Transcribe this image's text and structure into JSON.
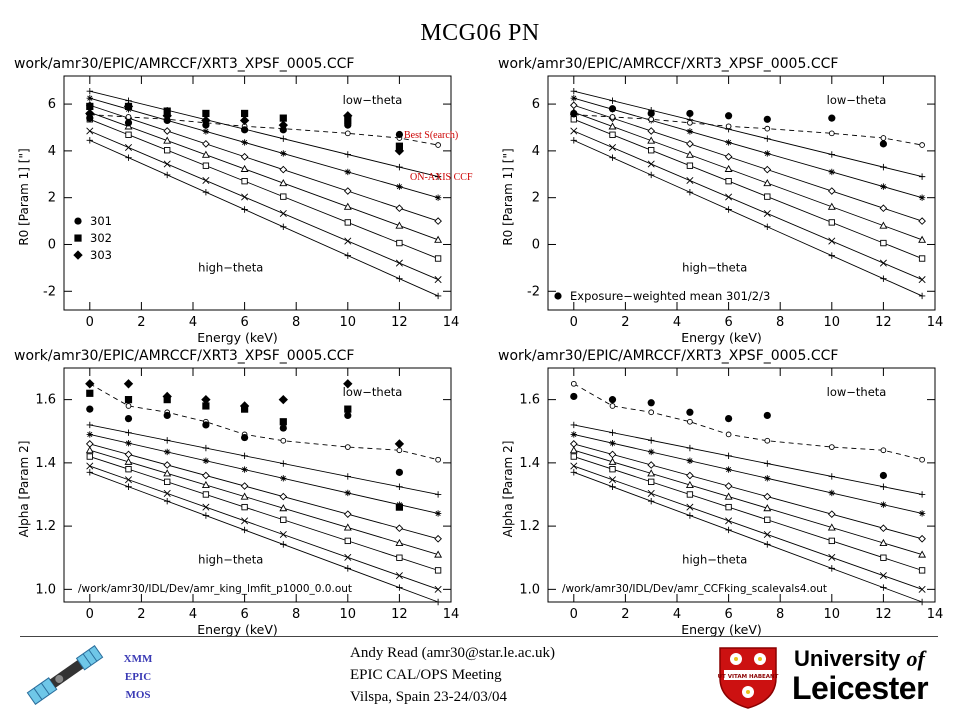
{
  "slide": {
    "title": "MCG06     PN"
  },
  "annotations": {
    "best_search": "Best S(earch)",
    "on_axis_ccf": "ON-AXIS CCF"
  },
  "footer": {
    "left_labels": [
      "XMM",
      "EPIC",
      "MOS"
    ],
    "center_lines": [
      "Andy Read (amr30@star.le.ac.uk)",
      "EPIC CAL/OPS Meeting",
      "Vilspa, Spain 23-24/03/04"
    ],
    "logo_line1_a": "University ",
    "logo_line1_b": "of",
    "logo_line2": "Leicester",
    "crest_motto": "UT VITAM HABEANT",
    "colors": {
      "footer_text": "#3a3ab5",
      "crest_red": "#cc1111",
      "annotation": "#cc0000"
    }
  },
  "chart_data": [
    {
      "type": "scatter",
      "title": "work/amr30/EPIC/AMRCCF/XRT3_XPSF_0005.CCF",
      "xlabel": "Energy (keV)",
      "ylabel": "R0 [Param 1] [\"]",
      "xlim": [
        -1,
        14
      ],
      "ylim": [
        -2.8,
        7.2
      ],
      "xticks": [
        "0",
        "2",
        "4",
        "6",
        "8",
        "10",
        "12",
        "14"
      ],
      "yticks": [
        "-2",
        "0",
        "2",
        "4",
        "6"
      ],
      "labels": [
        "low−theta",
        "high−theta"
      ],
      "footnote": "",
      "legend": [
        {
          "name": "301",
          "marker": "circle"
        },
        {
          "name": "302",
          "marker": "square"
        },
        {
          "name": "303",
          "marker": "diamond"
        }
      ],
      "observed": [
        {
          "name": "301",
          "x": [
            0,
            1.5,
            3,
            4.5,
            6,
            7.5,
            10,
            12
          ],
          "y": [
            5.4,
            5.2,
            5.3,
            5.1,
            4.9,
            4.9,
            5.1,
            4.7
          ]
        },
        {
          "name": "302",
          "x": [
            0,
            1.5,
            3,
            4.5,
            6,
            7.5,
            10,
            12
          ],
          "y": [
            5.9,
            5.9,
            5.7,
            5.6,
            5.6,
            5.4,
            5.3,
            4.2
          ]
        },
        {
          "name": "303",
          "x": [
            0,
            1.5,
            3,
            4.5,
            6,
            7.5,
            10,
            12
          ],
          "y": [
            5.6,
            5.9,
            5.5,
            5.3,
            5.3,
            5.1,
            5.5,
            4.0
          ]
        }
      ],
      "ccf_x": [
        0,
        1.5,
        3,
        4.5,
        6,
        7.5,
        10,
        12,
        13.5
      ],
      "ccf_curve": [
        5.55,
        5.45,
        5.35,
        5.2,
        5.05,
        4.95,
        4.75,
        4.55,
        4.25
      ],
      "ccf_lines": [
        {
          "start": 6.55,
          "end": 2.9,
          "marker": "plus"
        },
        {
          "start": 6.25,
          "end": 2.0,
          "marker": "asterisk"
        },
        {
          "start": 5.95,
          "end": 1.0,
          "marker": "diamond-open"
        },
        {
          "start": 5.65,
          "end": 0.2,
          "marker": "triangle-open"
        },
        {
          "start": 5.35,
          "end": -0.6,
          "marker": "square-open"
        },
        {
          "start": 4.85,
          "end": -1.5,
          "marker": "cross"
        },
        {
          "start": 4.45,
          "end": -2.2,
          "marker": "plus"
        }
      ]
    },
    {
      "type": "scatter",
      "title": "work/amr30/EPIC/AMRCCF/XRT3_XPSF_0005.CCF",
      "xlabel": "Energy (keV)",
      "ylabel": "R0 [Param 1] [\"]",
      "xlim": [
        -1,
        14
      ],
      "ylim": [
        -2.8,
        7.2
      ],
      "xticks": [
        "0",
        "2",
        "4",
        "6",
        "8",
        "10",
        "12",
        "14"
      ],
      "yticks": [
        "-2",
        "0",
        "2",
        "4",
        "6"
      ],
      "labels": [
        "low−theta",
        "high−theta"
      ],
      "footnote": "",
      "legend": [
        {
          "name": "Exposure−weighted mean 301/2/3",
          "marker": "circle"
        }
      ],
      "observed": [
        {
          "name": "Exposure−weighted mean 301/2/3",
          "x": [
            0,
            1.5,
            3,
            4.5,
            6,
            7.5,
            10,
            12
          ],
          "y": [
            5.6,
            5.8,
            5.6,
            5.6,
            5.5,
            5.35,
            5.4,
            4.3
          ]
        }
      ],
      "ccf_x": [
        0,
        1.5,
        3,
        4.5,
        6,
        7.5,
        10,
        12,
        13.5
      ],
      "ccf_curve": [
        5.55,
        5.45,
        5.35,
        5.2,
        5.05,
        4.95,
        4.75,
        4.55,
        4.25
      ],
      "ccf_lines": [
        {
          "start": 6.55,
          "end": 2.9,
          "marker": "plus"
        },
        {
          "start": 6.25,
          "end": 2.0,
          "marker": "asterisk"
        },
        {
          "start": 5.95,
          "end": 1.0,
          "marker": "diamond-open"
        },
        {
          "start": 5.65,
          "end": 0.2,
          "marker": "triangle-open"
        },
        {
          "start": 5.35,
          "end": -0.6,
          "marker": "square-open"
        },
        {
          "start": 4.85,
          "end": -1.5,
          "marker": "cross"
        },
        {
          "start": 4.45,
          "end": -2.2,
          "marker": "plus"
        }
      ]
    },
    {
      "type": "scatter",
      "title": "work/amr30/EPIC/AMRCCF/XRT3_XPSF_0005.CCF",
      "xlabel": "Energy (keV)",
      "ylabel": "Alpha [Param 2]",
      "xlim": [
        -1,
        14
      ],
      "ylim": [
        0.96,
        1.7
      ],
      "xticks": [
        "0",
        "2",
        "4",
        "6",
        "8",
        "10",
        "12",
        "14"
      ],
      "yticks": [
        "1.0",
        "1.2",
        "1.4",
        "1.6"
      ],
      "labels": [
        "low−theta",
        "high−theta"
      ],
      "footnote": "/work/amr30/IDL/Dev/amr_king_lmfit_p1000_0.0.out",
      "legend": [],
      "observed": [
        {
          "name": "301",
          "x": [
            0,
            1.5,
            3,
            4.5,
            6,
            7.5,
            10,
            12
          ],
          "y": [
            1.57,
            1.54,
            1.55,
            1.52,
            1.48,
            1.51,
            1.55,
            1.37
          ]
        },
        {
          "name": "302",
          "x": [
            0,
            1.5,
            3,
            4.5,
            6,
            7.5,
            10,
            12
          ],
          "y": [
            1.62,
            1.6,
            1.6,
            1.58,
            1.57,
            1.53,
            1.57,
            1.26
          ]
        },
        {
          "name": "303",
          "x": [
            0,
            1.5,
            3,
            4.5,
            6,
            7.5,
            10,
            12
          ],
          "y": [
            1.65,
            1.65,
            1.61,
            1.6,
            1.58,
            1.6,
            1.65,
            1.46
          ]
        }
      ],
      "ccf_x": [
        0,
        1.5,
        3,
        4.5,
        6,
        7.5,
        10,
        12,
        13.5
      ],
      "ccf_curve": [
        1.65,
        1.58,
        1.56,
        1.53,
        1.49,
        1.47,
        1.45,
        1.44,
        1.41
      ],
      "ccf_lines": [
        {
          "start": 1.52,
          "end": 1.3,
          "marker": "plus"
        },
        {
          "start": 1.49,
          "end": 1.24,
          "marker": "asterisk"
        },
        {
          "start": 1.46,
          "end": 1.16,
          "marker": "diamond-open"
        },
        {
          "start": 1.44,
          "end": 1.11,
          "marker": "triangle-open"
        },
        {
          "start": 1.42,
          "end": 1.06,
          "marker": "square-open"
        },
        {
          "start": 1.39,
          "end": 1.0,
          "marker": "cross"
        },
        {
          "start": 1.37,
          "end": 0.96,
          "marker": "plus"
        }
      ]
    },
    {
      "type": "scatter",
      "title": "work/amr30/EPIC/AMRCCF/XRT3_XPSF_0005.CCF",
      "xlabel": "Energy (keV)",
      "ylabel": "Alpha [Param 2]",
      "xlim": [
        -1,
        14
      ],
      "ylim": [
        0.96,
        1.7
      ],
      "xticks": [
        "0",
        "2",
        "4",
        "6",
        "8",
        "10",
        "12",
        "14"
      ],
      "yticks": [
        "1.0",
        "1.2",
        "1.4",
        "1.6"
      ],
      "labels": [
        "low−theta",
        "high−theta"
      ],
      "footnote": "/work/amr30/IDL/Dev/amr_CCFking_scalevals4.out",
      "legend": [],
      "observed": [
        {
          "name": "Exposure−weighted mean 301/2/3",
          "x": [
            0,
            1.5,
            3,
            4.5,
            6,
            7.5,
            12
          ],
          "y": [
            1.61,
            1.6,
            1.59,
            1.56,
            1.54,
            1.55,
            1.36
          ]
        }
      ],
      "ccf_x": [
        0,
        1.5,
        3,
        4.5,
        6,
        7.5,
        10,
        12,
        13.5
      ],
      "ccf_curve": [
        1.65,
        1.58,
        1.56,
        1.53,
        1.49,
        1.47,
        1.45,
        1.44,
        1.41
      ],
      "ccf_lines": [
        {
          "start": 1.52,
          "end": 1.3,
          "marker": "plus"
        },
        {
          "start": 1.49,
          "end": 1.24,
          "marker": "asterisk"
        },
        {
          "start": 1.46,
          "end": 1.16,
          "marker": "diamond-open"
        },
        {
          "start": 1.44,
          "end": 1.11,
          "marker": "triangle-open"
        },
        {
          "start": 1.42,
          "end": 1.06,
          "marker": "square-open"
        },
        {
          "start": 1.39,
          "end": 1.0,
          "marker": "cross"
        },
        {
          "start": 1.37,
          "end": 0.96,
          "marker": "plus"
        }
      ]
    }
  ]
}
